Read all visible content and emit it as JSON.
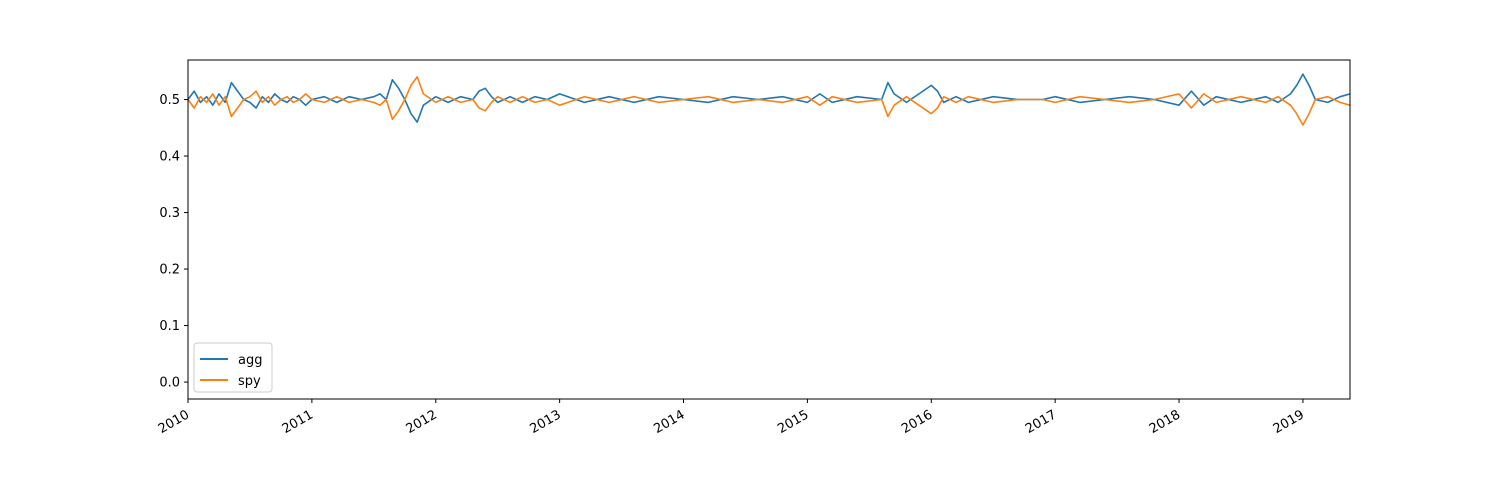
{
  "chart_data": {
    "type": "line",
    "title": "",
    "xlabel": "",
    "ylabel": "",
    "xlim": [
      2010.0,
      2019.38
    ],
    "ylim": [
      -0.03,
      0.57
    ],
    "grid": false,
    "legend_position": "lower-left",
    "x_ticks": [
      {
        "value": 2010,
        "label": "2010"
      },
      {
        "value": 2011,
        "label": "2011"
      },
      {
        "value": 2012,
        "label": "2012"
      },
      {
        "value": 2013,
        "label": "2013"
      },
      {
        "value": 2014,
        "label": "2014"
      },
      {
        "value": 2015,
        "label": "2015"
      },
      {
        "value": 2016,
        "label": "2016"
      },
      {
        "value": 2017,
        "label": "2017"
      },
      {
        "value": 2018,
        "label": "2018"
      },
      {
        "value": 2019,
        "label": "2019"
      }
    ],
    "y_ticks": [
      {
        "value": 0.0,
        "label": "0.0"
      },
      {
        "value": 0.1,
        "label": "0.1"
      },
      {
        "value": 0.2,
        "label": "0.2"
      },
      {
        "value": 0.3,
        "label": "0.3"
      },
      {
        "value": 0.4,
        "label": "0.4"
      },
      {
        "value": 0.5,
        "label": "0.5"
      }
    ],
    "series": [
      {
        "name": "agg",
        "color": "#1f77b4",
        "x": [
          2010.0,
          2010.05,
          2010.1,
          2010.15,
          2010.2,
          2010.25,
          2010.3,
          2010.35,
          2010.4,
          2010.45,
          2010.5,
          2010.55,
          2010.6,
          2010.65,
          2010.7,
          2010.75,
          2010.8,
          2010.85,
          2010.9,
          2010.95,
          2011.0,
          2011.1,
          2011.2,
          2011.3,
          2011.4,
          2011.5,
          2011.55,
          2011.6,
          2011.65,
          2011.7,
          2011.75,
          2011.8,
          2011.85,
          2011.9,
          2012.0,
          2012.1,
          2012.2,
          2012.3,
          2012.35,
          2012.4,
          2012.45,
          2012.5,
          2012.6,
          2012.7,
          2012.8,
          2012.9,
          2013.0,
          2013.2,
          2013.4,
          2013.6,
          2013.8,
          2014.0,
          2014.2,
          2014.4,
          2014.6,
          2014.8,
          2015.0,
          2015.1,
          2015.2,
          2015.4,
          2015.6,
          2015.65,
          2015.7,
          2015.8,
          2015.9,
          2016.0,
          2016.05,
          2016.1,
          2016.2,
          2016.3,
          2016.5,
          2016.7,
          2016.9,
          2017.0,
          2017.2,
          2017.4,
          2017.6,
          2017.8,
          2018.0,
          2018.1,
          2018.2,
          2018.3,
          2018.5,
          2018.7,
          2018.8,
          2018.9,
          2018.95,
          2019.0,
          2019.05,
          2019.1,
          2019.2,
          2019.3,
          2019.38
        ],
        "y": [
          0.5,
          0.515,
          0.495,
          0.505,
          0.49,
          0.51,
          0.495,
          0.53,
          0.515,
          0.5,
          0.495,
          0.485,
          0.505,
          0.495,
          0.51,
          0.5,
          0.495,
          0.505,
          0.5,
          0.49,
          0.5,
          0.505,
          0.495,
          0.505,
          0.5,
          0.505,
          0.51,
          0.5,
          0.535,
          0.52,
          0.5,
          0.475,
          0.46,
          0.49,
          0.505,
          0.495,
          0.505,
          0.5,
          0.515,
          0.52,
          0.505,
          0.495,
          0.505,
          0.495,
          0.505,
          0.5,
          0.51,
          0.495,
          0.505,
          0.495,
          0.505,
          0.5,
          0.495,
          0.505,
          0.5,
          0.505,
          0.495,
          0.51,
          0.495,
          0.505,
          0.5,
          0.53,
          0.51,
          0.495,
          0.51,
          0.525,
          0.515,
          0.495,
          0.505,
          0.495,
          0.505,
          0.5,
          0.5,
          0.505,
          0.495,
          0.5,
          0.505,
          0.5,
          0.49,
          0.515,
          0.49,
          0.505,
          0.495,
          0.505,
          0.495,
          0.51,
          0.525,
          0.545,
          0.525,
          0.5,
          0.495,
          0.505,
          0.51
        ]
      },
      {
        "name": "spy",
        "color": "#ff7f0e",
        "x": [
          2010.0,
          2010.05,
          2010.1,
          2010.15,
          2010.2,
          2010.25,
          2010.3,
          2010.35,
          2010.4,
          2010.45,
          2010.5,
          2010.55,
          2010.6,
          2010.65,
          2010.7,
          2010.75,
          2010.8,
          2010.85,
          2010.9,
          2010.95,
          2011.0,
          2011.1,
          2011.2,
          2011.3,
          2011.4,
          2011.5,
          2011.55,
          2011.6,
          2011.65,
          2011.7,
          2011.75,
          2011.8,
          2011.85,
          2011.9,
          2012.0,
          2012.1,
          2012.2,
          2012.3,
          2012.35,
          2012.4,
          2012.45,
          2012.5,
          2012.6,
          2012.7,
          2012.8,
          2012.9,
          2013.0,
          2013.2,
          2013.4,
          2013.6,
          2013.8,
          2014.0,
          2014.2,
          2014.4,
          2014.6,
          2014.8,
          2015.0,
          2015.1,
          2015.2,
          2015.4,
          2015.6,
          2015.65,
          2015.7,
          2015.8,
          2015.9,
          2016.0,
          2016.05,
          2016.1,
          2016.2,
          2016.3,
          2016.5,
          2016.7,
          2016.9,
          2017.0,
          2017.2,
          2017.4,
          2017.6,
          2017.8,
          2018.0,
          2018.1,
          2018.2,
          2018.3,
          2018.5,
          2018.7,
          2018.8,
          2018.9,
          2018.95,
          2019.0,
          2019.05,
          2019.1,
          2019.2,
          2019.3,
          2019.38
        ],
        "y": [
          0.5,
          0.485,
          0.505,
          0.495,
          0.51,
          0.49,
          0.505,
          0.47,
          0.485,
          0.5,
          0.505,
          0.515,
          0.495,
          0.505,
          0.49,
          0.5,
          0.505,
          0.495,
          0.5,
          0.51,
          0.5,
          0.495,
          0.505,
          0.495,
          0.5,
          0.495,
          0.49,
          0.5,
          0.465,
          0.48,
          0.5,
          0.525,
          0.54,
          0.51,
          0.495,
          0.505,
          0.495,
          0.5,
          0.485,
          0.48,
          0.495,
          0.505,
          0.495,
          0.505,
          0.495,
          0.5,
          0.49,
          0.505,
          0.495,
          0.505,
          0.495,
          0.5,
          0.505,
          0.495,
          0.5,
          0.495,
          0.505,
          0.49,
          0.505,
          0.495,
          0.5,
          0.47,
          0.49,
          0.505,
          0.49,
          0.475,
          0.485,
          0.505,
          0.495,
          0.505,
          0.495,
          0.5,
          0.5,
          0.495,
          0.505,
          0.5,
          0.495,
          0.5,
          0.51,
          0.485,
          0.51,
          0.495,
          0.505,
          0.495,
          0.505,
          0.49,
          0.475,
          0.455,
          0.475,
          0.5,
          0.505,
          0.495,
          0.49
        ]
      }
    ]
  }
}
